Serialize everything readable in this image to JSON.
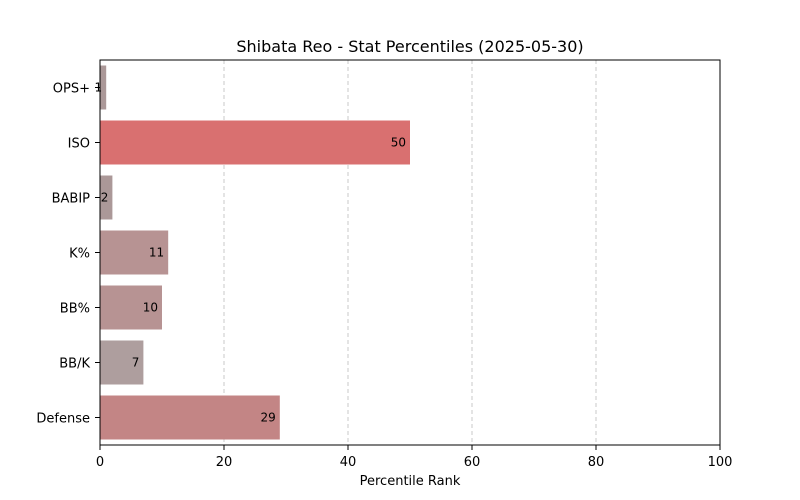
{
  "chart_data": {
    "type": "bar",
    "orientation": "horizontal",
    "title": "Shibata Reo - Stat Percentiles (2025-05-30)",
    "xlabel": "Percentile Rank",
    "ylabel": "",
    "xlim": [
      0,
      100
    ],
    "xticks": [
      0,
      20,
      40,
      60,
      80,
      100
    ],
    "grid": {
      "x": true,
      "y": false,
      "style": "dashed"
    },
    "categories": [
      "OPS+",
      "ISO",
      "BABIP",
      "K%",
      "BB%",
      "BB/K",
      "Defense"
    ],
    "values": [
      1,
      50,
      2,
      11,
      10,
      7,
      29
    ],
    "colors": [
      "#ab9898",
      "#d97070",
      "#ab9898",
      "#b79393",
      "#b79393",
      "#ae9e9e",
      "#c38585"
    ]
  }
}
